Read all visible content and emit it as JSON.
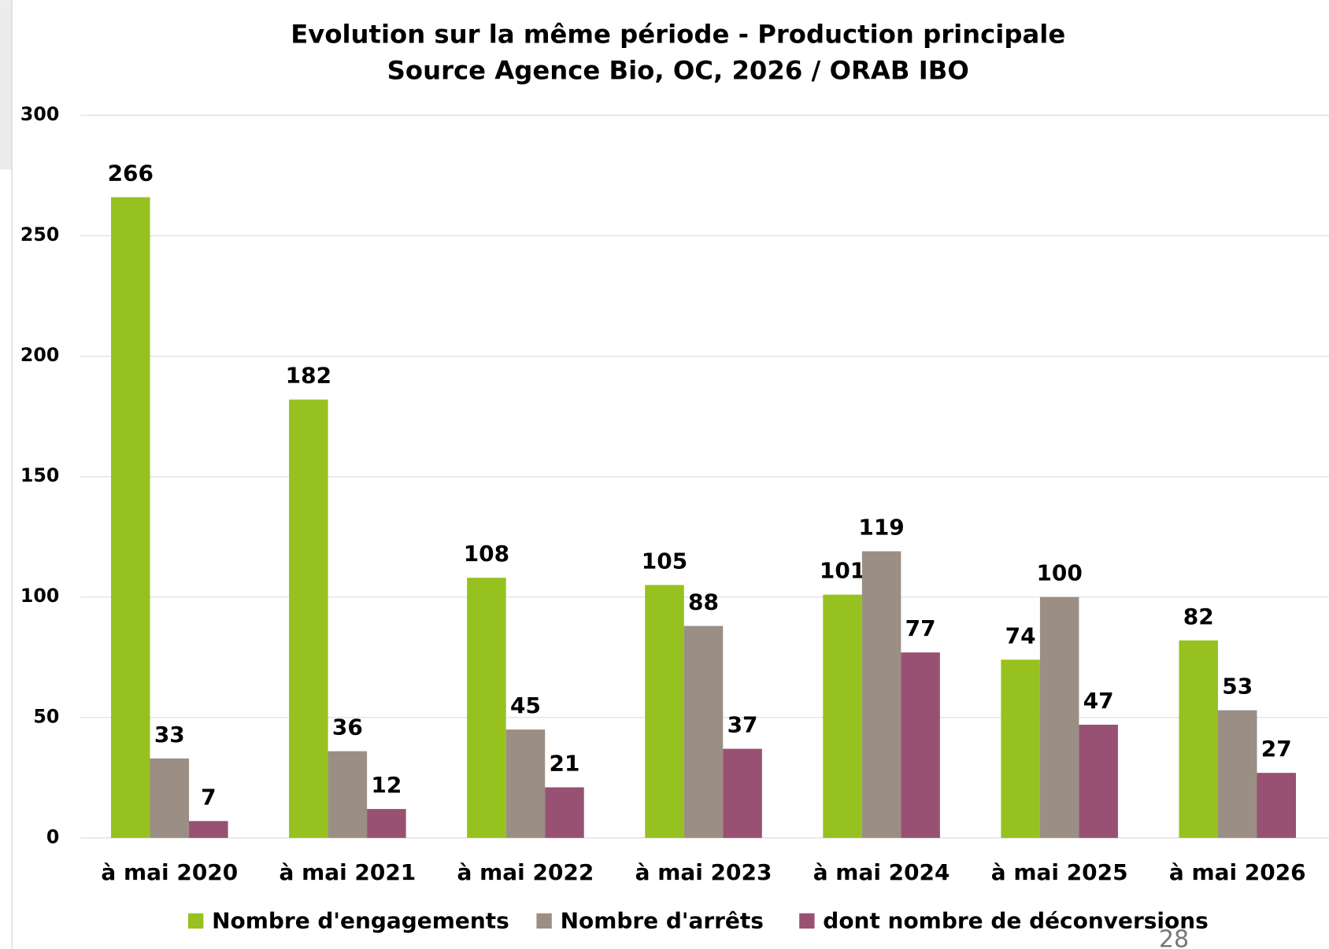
{
  "chart_data": {
    "type": "bar",
    "title": "Evolution sur la même période - Production principale",
    "subtitle": "Source Agence Bio, OC, 2026 / ORAB IBO",
    "categories": [
      "à mai 2020",
      "à mai 2021",
      "à mai 2022",
      "à mai 2023",
      "à mai 2024",
      "à mai 2025",
      "à mai 2026"
    ],
    "series": [
      {
        "name": "Nombre d'engagements",
        "color": "#96c11f",
        "values": [
          266,
          182,
          108,
          105,
          101,
          74,
          82
        ]
      },
      {
        "name": "Nombre d'arrêts",
        "color": "#9b8e84",
        "values": [
          33,
          36,
          45,
          88,
          119,
          100,
          53
        ]
      },
      {
        "name": "dont nombre de déconversions",
        "color": "#985073",
        "values": [
          7,
          12,
          21,
          37,
          77,
          47,
          27
        ]
      }
    ],
    "ylim": [
      0,
      300
    ],
    "yticks": [
      0,
      50,
      100,
      150,
      200,
      250,
      300
    ],
    "grid": true,
    "legend": "bottom",
    "page_number": "28"
  }
}
